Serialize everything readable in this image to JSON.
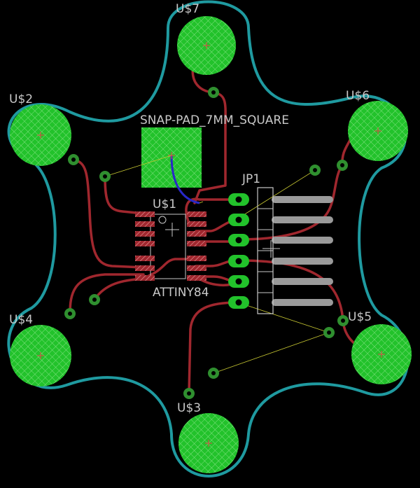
{
  "pads": {
    "u7": "U$7",
    "u2": "U$2",
    "u6": "U$6",
    "u4": "U$4",
    "u5": "U$5",
    "u3": "U$3"
  },
  "components": {
    "snap_pad": "SNAP-PAD_7MM_SQUARE",
    "jp1": "JP1",
    "u1": "U$1",
    "attiny": "ATTINY84"
  },
  "colors": {
    "background": "#000000",
    "outline": "#1f9aa0",
    "copper_pad": "#22c22b",
    "trace_bottom": "#a0272e",
    "trace_top": "#2828c8",
    "silkscreen": "#c8c8c8",
    "ratsnest": "#c8c832",
    "via": "#2f8f2f"
  }
}
